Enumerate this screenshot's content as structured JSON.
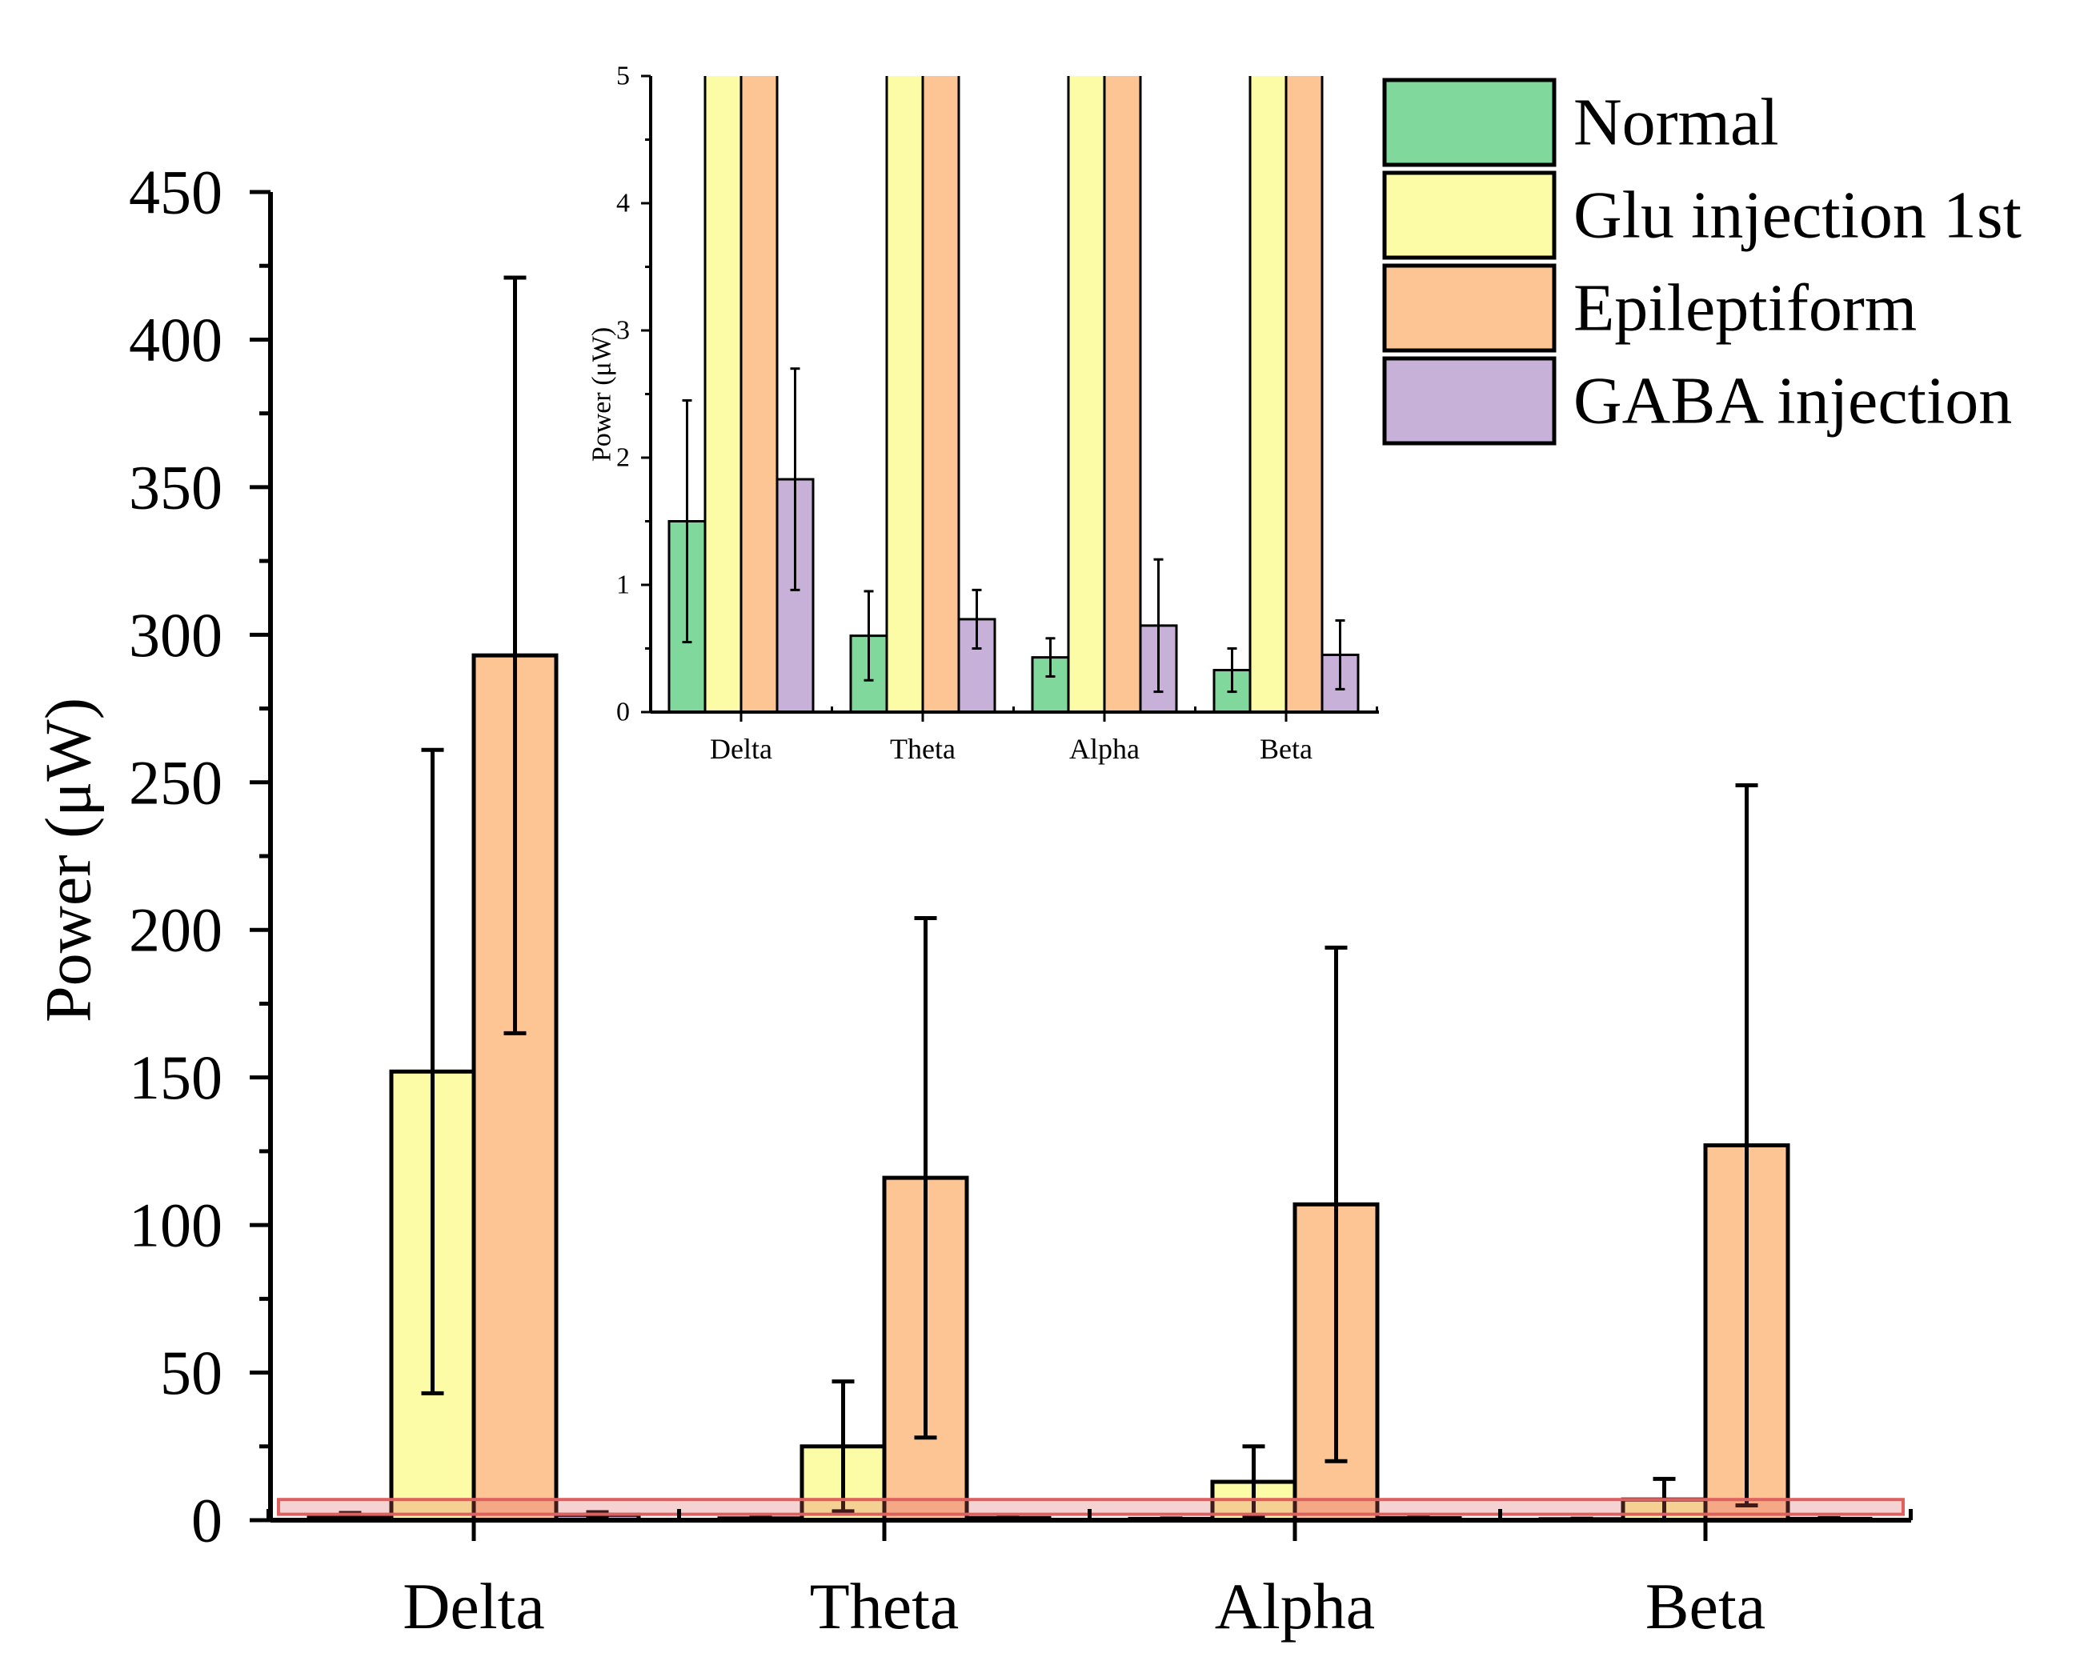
{
  "chart_data": [
    {
      "id": "main",
      "type": "bar",
      "title": "",
      "xlabel": "",
      "ylabel": "Power (μW)",
      "ylim": [
        0,
        450
      ],
      "yticks": [
        0,
        50,
        100,
        150,
        200,
        250,
        300,
        350,
        400,
        450
      ],
      "categories": [
        "Delta",
        "Theta",
        "Alpha",
        "Beta"
      ],
      "grid": false,
      "highlight_band": [
        0,
        6
      ],
      "series": [
        {
          "name": "Normal",
          "values": [
            1.5,
            0.6,
            0.43,
            0.33
          ],
          "errors": [
            0.95,
            0.35,
            0.15,
            0.17
          ]
        },
        {
          "name": "Glu injection 1st",
          "values": [
            152,
            25,
            13,
            7
          ],
          "errors": [
            109,
            22,
            12,
            7
          ]
        },
        {
          "name": "Epileptiform",
          "values": [
            293,
            116,
            107,
            127
          ],
          "errors": [
            128,
            88,
            87,
            122
          ]
        },
        {
          "name": "GABA injection",
          "values": [
            1.83,
            0.73,
            0.68,
            0.45
          ],
          "errors": [
            0.87,
            0.23,
            0.52,
            0.27
          ]
        }
      ]
    },
    {
      "id": "inset",
      "type": "bar",
      "title": "",
      "xlabel": "",
      "ylabel": "Power (μW)",
      "ylim": [
        0,
        5
      ],
      "yticks": [
        0,
        1,
        2,
        3,
        4,
        5
      ],
      "categories": [
        "Delta",
        "Theta",
        "Alpha",
        "Beta"
      ],
      "grid": false,
      "series": [
        {
          "name": "Normal",
          "values": [
            1.5,
            0.6,
            0.43,
            0.33
          ],
          "errors": [
            0.95,
            0.35,
            0.15,
            0.17
          ]
        },
        {
          "name": "Glu injection 1st",
          "values": [
            152,
            25,
            13,
            7
          ],
          "errors": [
            109,
            22,
            12,
            7
          ]
        },
        {
          "name": "Epileptiform",
          "values": [
            293,
            116,
            107,
            127
          ],
          "errors": [
            128,
            88,
            87,
            122
          ]
        },
        {
          "name": "GABA injection",
          "values": [
            1.83,
            0.73,
            0.68,
            0.45
          ],
          "errors": [
            0.87,
            0.23,
            0.52,
            0.27
          ]
        }
      ]
    }
  ],
  "legend": {
    "placement": "top-right",
    "entries": [
      {
        "label": "Normal",
        "color": "#80d89c"
      },
      {
        "label": "Glu injection 1st",
        "color": "#fdfca6"
      },
      {
        "label": "Epileptiform",
        "color": "#fdc494"
      },
      {
        "label": "GABA injection",
        "color": "#c8b1d8"
      }
    ]
  },
  "colors": {
    "axis": "#000000",
    "highlight_band": "#e06060"
  }
}
